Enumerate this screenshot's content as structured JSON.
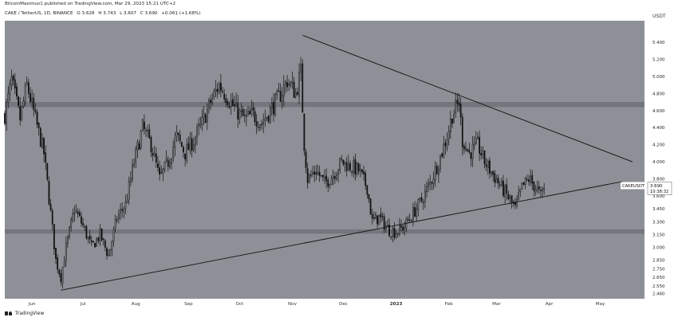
{
  "header": {
    "publisher": "BitcoinMaximus1 published on TradingView.com, Mar 29, 2023 15:21 UTC+2",
    "symbol": "CAKE / TetherUS, 1D, BINANCE",
    "open": "O 3.628",
    "high": "H 3.743",
    "low": "L 3.607",
    "close": "C 3.690",
    "change": "+0.061 (+1.68%)"
  },
  "footer": {
    "brand": "TradingView"
  },
  "colors": {
    "background": "#8e9097",
    "candle": "#111111",
    "zone": "#6c6e74",
    "axis_bg": "#ffffff"
  },
  "chart_data": {
    "type": "candlestick",
    "symbol": "CAKEUSDT",
    "currency_label": "USDT",
    "last_price": "3.690",
    "countdown": "10:38:32",
    "y_ticks": [
      "5.400",
      "5.200",
      "5.000",
      "4.800",
      "4.600",
      "4.400",
      "4.200",
      "4.000",
      "3.800",
      "3.600",
      "3.450",
      "3.300",
      "3.150",
      "3.000",
      "2.850",
      "2.750",
      "2.650",
      "2.550",
      "2.460"
    ],
    "x_ticks": [
      "Jun",
      "Jul",
      "Aug",
      "Sep",
      "Oct",
      "Nov",
      "Dec",
      "2023",
      "Feb",
      "Mar",
      "Apr",
      "May"
    ],
    "x_range": [
      "2022-05-16",
      "2023-05-27"
    ],
    "y_range": [
      2.4,
      5.65
    ],
    "horizontal_zones": [
      {
        "name": "resistance",
        "low": 4.64,
        "high": 4.7
      },
      {
        "name": "support",
        "low": 3.16,
        "high": 3.21
      }
    ],
    "trendlines": [
      {
        "name": "descending-resistance",
        "from": {
          "date": "2022-11-07",
          "price": 5.48
        },
        "to": {
          "date": "2023-05-20",
          "price": 4.0
        }
      },
      {
        "name": "ascending-support",
        "from": {
          "date": "2022-06-18",
          "price": 2.5
        },
        "to": {
          "date": "2023-05-14",
          "price": 3.77
        }
      }
    ],
    "price_path": [
      [
        "2022-05-16",
        4.55
      ],
      [
        "2022-05-20",
        4.95
      ],
      [
        "2022-05-25",
        4.5
      ],
      [
        "2022-05-29",
        4.9
      ],
      [
        "2022-06-03",
        4.5
      ],
      [
        "2022-06-08",
        4.1
      ],
      [
        "2022-06-12",
        3.4
      ],
      [
        "2022-06-15",
        2.85
      ],
      [
        "2022-06-18",
        2.65
      ],
      [
        "2022-06-21",
        3.0
      ],
      [
        "2022-06-26",
        3.45
      ],
      [
        "2022-07-01",
        3.25
      ],
      [
        "2022-07-06",
        3.0
      ],
      [
        "2022-07-11",
        3.15
      ],
      [
        "2022-07-16",
        2.9
      ],
      [
        "2022-07-21",
        3.35
      ],
      [
        "2022-07-26",
        3.5
      ],
      [
        "2022-07-31",
        4.0
      ],
      [
        "2022-08-05",
        4.4
      ],
      [
        "2022-08-10",
        4.2
      ],
      [
        "2022-08-15",
        3.8
      ],
      [
        "2022-08-20",
        4.0
      ],
      [
        "2022-08-25",
        4.3
      ],
      [
        "2022-08-30",
        4.1
      ],
      [
        "2022-09-04",
        4.25
      ],
      [
        "2022-09-09",
        4.45
      ],
      [
        "2022-09-14",
        4.7
      ],
      [
        "2022-09-19",
        4.9
      ],
      [
        "2022-09-24",
        4.75
      ],
      [
        "2022-09-29",
        4.6
      ],
      [
        "2022-10-04",
        4.5
      ],
      [
        "2022-10-09",
        4.55
      ],
      [
        "2022-10-14",
        4.45
      ],
      [
        "2022-10-19",
        4.6
      ],
      [
        "2022-10-24",
        4.75
      ],
      [
        "2022-10-29",
        4.95
      ],
      [
        "2022-11-03",
        4.8
      ],
      [
        "2022-11-06",
        5.05
      ],
      [
        "2022-11-08",
        4.2
      ],
      [
        "2022-11-10",
        3.8
      ],
      [
        "2022-11-15",
        3.9
      ],
      [
        "2022-11-20",
        3.75
      ],
      [
        "2022-11-25",
        3.85
      ],
      [
        "2022-11-30",
        4.0
      ],
      [
        "2022-12-05",
        3.95
      ],
      [
        "2022-12-10",
        3.9
      ],
      [
        "2022-12-15",
        3.7
      ],
      [
        "2022-12-18",
        3.3
      ],
      [
        "2022-12-22",
        3.35
      ],
      [
        "2022-12-28",
        3.2
      ],
      [
        "2023-01-01",
        3.18
      ],
      [
        "2023-01-06",
        3.25
      ],
      [
        "2023-01-11",
        3.4
      ],
      [
        "2023-01-16",
        3.55
      ],
      [
        "2023-01-21",
        3.75
      ],
      [
        "2023-01-26",
        4.0
      ],
      [
        "2023-01-31",
        4.3
      ],
      [
        "2023-02-03",
        4.55
      ],
      [
        "2023-02-07",
        4.7
      ],
      [
        "2023-02-09",
        4.25
      ],
      [
        "2023-02-13",
        4.1
      ],
      [
        "2023-02-18",
        4.2
      ],
      [
        "2023-02-22",
        4.0
      ],
      [
        "2023-02-27",
        3.85
      ],
      [
        "2023-03-04",
        3.7
      ],
      [
        "2023-03-09",
        3.55
      ],
      [
        "2023-03-12",
        3.45
      ],
      [
        "2023-03-16",
        3.7
      ],
      [
        "2023-03-20",
        3.8
      ],
      [
        "2023-03-24",
        3.7
      ],
      [
        "2023-03-27",
        3.6
      ],
      [
        "2023-03-29",
        3.69
      ]
    ]
  }
}
